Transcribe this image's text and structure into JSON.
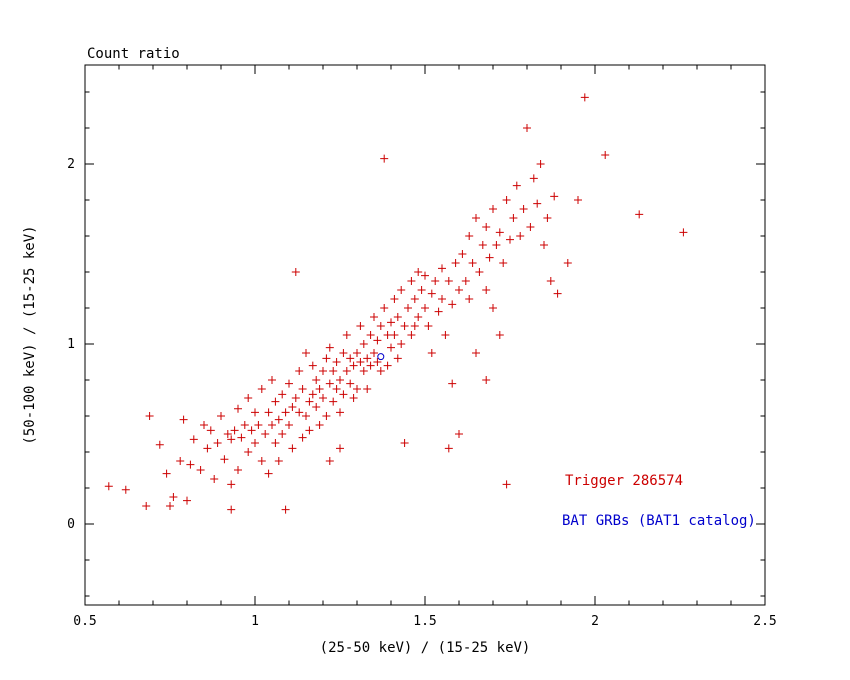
{
  "title": "Count ratio",
  "colors": {
    "trigger_red": "#cc0000",
    "catalog_blue": "#0000cc",
    "axis_black": "#000000",
    "background": "#ffffff"
  },
  "legend": [
    {
      "label": "Trigger 286574",
      "color": "#cc0000"
    },
    {
      "label": "BAT GRBs (BAT1 catalog)",
      "color": "#0000cc"
    }
  ],
  "chart_data": {
    "type": "scatter",
    "title": "Count ratio",
    "xlabel": "(25-50 keV) / (15-25 keV)",
    "ylabel": "(50-100 keV) / (15-25 keV)",
    "xlim": [
      0.5,
      2.5
    ],
    "ylim": [
      -0.45,
      2.55
    ],
    "x_major_ticks": [
      0.5,
      1.0,
      1.5,
      2.0,
      2.5
    ],
    "x_tick_labels": [
      "0.5",
      "1",
      "1.5",
      "2",
      "2.5"
    ],
    "x_minor_step": 0.1,
    "y_major_ticks": [
      0,
      1,
      2
    ],
    "y_tick_labels": [
      "0",
      "1",
      "2"
    ],
    "y_minor_step": 0.2,
    "grid": false,
    "legend_position": "lower-right-inside",
    "series": [
      {
        "name": "Trigger 286574",
        "marker": "plus",
        "color": "#cc0000",
        "points": [
          [
            0.57,
            0.21
          ],
          [
            0.62,
            0.19
          ],
          [
            0.68,
            0.1
          ],
          [
            0.69,
            0.6
          ],
          [
            0.72,
            0.44
          ],
          [
            0.74,
            0.28
          ],
          [
            0.75,
            0.1
          ],
          [
            0.76,
            0.15
          ],
          [
            0.78,
            0.35
          ],
          [
            0.79,
            0.58
          ],
          [
            0.8,
            0.13
          ],
          [
            0.81,
            0.33
          ],
          [
            0.82,
            0.47
          ],
          [
            0.84,
            0.3
          ],
          [
            0.85,
            0.55
          ],
          [
            0.86,
            0.42
          ],
          [
            0.87,
            0.52
          ],
          [
            0.88,
            0.25
          ],
          [
            0.89,
            0.45
          ],
          [
            0.9,
            0.6
          ],
          [
            0.91,
            0.36
          ],
          [
            0.92,
            0.5
          ],
          [
            0.93,
            0.22
          ],
          [
            0.93,
            0.08
          ],
          [
            0.93,
            0.47
          ],
          [
            0.94,
            0.52
          ],
          [
            0.95,
            0.3
          ],
          [
            0.95,
            0.64
          ],
          [
            0.96,
            0.48
          ],
          [
            0.97,
            0.55
          ],
          [
            0.98,
            0.4
          ],
          [
            0.98,
            0.7
          ],
          [
            0.99,
            0.52
          ],
          [
            1.0,
            0.45
          ],
          [
            1.0,
            0.62
          ],
          [
            1.01,
            0.55
          ],
          [
            1.02,
            0.35
          ],
          [
            1.02,
            0.75
          ],
          [
            1.03,
            0.5
          ],
          [
            1.04,
            0.62
          ],
          [
            1.04,
            0.28
          ],
          [
            1.05,
            0.55
          ],
          [
            1.05,
            0.8
          ],
          [
            1.06,
            0.45
          ],
          [
            1.06,
            0.68
          ],
          [
            1.07,
            0.58
          ],
          [
            1.07,
            0.35
          ],
          [
            1.08,
            0.72
          ],
          [
            1.08,
            0.5
          ],
          [
            1.09,
            0.62
          ],
          [
            1.09,
            0.08
          ],
          [
            1.1,
            0.55
          ],
          [
            1.1,
            0.78
          ],
          [
            1.11,
            0.65
          ],
          [
            1.11,
            0.42
          ],
          [
            1.12,
            0.7
          ],
          [
            1.12,
            1.4
          ],
          [
            1.13,
            0.85
          ],
          [
            1.13,
            0.62
          ],
          [
            1.14,
            0.48
          ],
          [
            1.14,
            0.75
          ],
          [
            1.15,
            0.6
          ],
          [
            1.15,
            0.95
          ],
          [
            1.16,
            0.68
          ],
          [
            1.16,
            0.52
          ],
          [
            1.17,
            0.72
          ],
          [
            1.17,
            0.88
          ],
          [
            1.18,
            0.65
          ],
          [
            1.18,
            0.8
          ],
          [
            1.19,
            0.75
          ],
          [
            1.19,
            0.55
          ],
          [
            1.2,
            0.85
          ],
          [
            1.2,
            0.7
          ],
          [
            1.21,
            0.92
          ],
          [
            1.21,
            0.6
          ],
          [
            1.22,
            0.78
          ],
          [
            1.22,
            0.35
          ],
          [
            1.22,
            0.98
          ],
          [
            1.23,
            0.85
          ],
          [
            1.23,
            0.68
          ],
          [
            1.24,
            0.75
          ],
          [
            1.24,
            0.9
          ],
          [
            1.25,
            0.8
          ],
          [
            1.25,
            0.42
          ],
          [
            1.25,
            0.62
          ],
          [
            1.26,
            0.95
          ],
          [
            1.26,
            0.72
          ],
          [
            1.27,
            0.85
          ],
          [
            1.27,
            1.05
          ],
          [
            1.28,
            0.78
          ],
          [
            1.28,
            0.92
          ],
          [
            1.29,
            0.7
          ],
          [
            1.29,
            0.88
          ],
          [
            1.3,
            0.95
          ],
          [
            1.3,
            0.75
          ],
          [
            1.31,
            0.9
          ],
          [
            1.31,
            1.1
          ],
          [
            1.32,
            0.85
          ],
          [
            1.32,
            1.0
          ],
          [
            1.33,
            0.92
          ],
          [
            1.33,
            0.75
          ],
          [
            1.34,
            1.05
          ],
          [
            1.34,
            0.88
          ],
          [
            1.35,
            0.95
          ],
          [
            1.35,
            1.15
          ],
          [
            1.36,
            0.9
          ],
          [
            1.36,
            1.02
          ],
          [
            1.37,
            1.1
          ],
          [
            1.37,
            0.85
          ],
          [
            1.38,
            1.2
          ],
          [
            1.38,
            2.03
          ],
          [
            1.39,
            1.05
          ],
          [
            1.39,
            0.88
          ],
          [
            1.4,
            1.12
          ],
          [
            1.4,
            0.98
          ],
          [
            1.41,
            1.25
          ],
          [
            1.41,
            1.05
          ],
          [
            1.42,
            0.92
          ],
          [
            1.42,
            1.15
          ],
          [
            1.43,
            1.3
          ],
          [
            1.43,
            1.0
          ],
          [
            1.44,
            1.1
          ],
          [
            1.44,
            0.45
          ],
          [
            1.45,
            1.2
          ],
          [
            1.46,
            1.35
          ],
          [
            1.46,
            1.05
          ],
          [
            1.47,
            1.25
          ],
          [
            1.47,
            1.1
          ],
          [
            1.48,
            1.4
          ],
          [
            1.48,
            1.15
          ],
          [
            1.49,
            1.3
          ],
          [
            1.5,
            1.2
          ],
          [
            1.5,
            1.38
          ],
          [
            1.51,
            1.1
          ],
          [
            1.52,
            1.28
          ],
          [
            1.52,
            0.95
          ],
          [
            1.53,
            1.35
          ],
          [
            1.54,
            1.18
          ],
          [
            1.55,
            1.42
          ],
          [
            1.55,
            1.25
          ],
          [
            1.56,
            1.05
          ],
          [
            1.57,
            1.35
          ],
          [
            1.57,
            0.42
          ],
          [
            1.58,
            1.22
          ],
          [
            1.58,
            0.78
          ],
          [
            1.59,
            1.45
          ],
          [
            1.6,
            1.3
          ],
          [
            1.6,
            0.5
          ],
          [
            1.61,
            1.5
          ],
          [
            1.62,
            1.35
          ],
          [
            1.63,
            1.6
          ],
          [
            1.63,
            1.25
          ],
          [
            1.64,
            1.45
          ],
          [
            1.65,
            1.7
          ],
          [
            1.65,
            0.95
          ],
          [
            1.66,
            1.4
          ],
          [
            1.67,
            1.55
          ],
          [
            1.68,
            1.3
          ],
          [
            1.68,
            1.65
          ],
          [
            1.68,
            0.8
          ],
          [
            1.69,
            1.48
          ],
          [
            1.7,
            1.75
          ],
          [
            1.7,
            1.2
          ],
          [
            1.71,
            1.55
          ],
          [
            1.72,
            1.62
          ],
          [
            1.72,
            1.05
          ],
          [
            1.73,
            1.45
          ],
          [
            1.74,
            1.8
          ],
          [
            1.74,
            0.22
          ],
          [
            1.75,
            1.58
          ],
          [
            1.76,
            1.7
          ],
          [
            1.77,
            1.88
          ],
          [
            1.78,
            1.6
          ],
          [
            1.79,
            1.75
          ],
          [
            1.8,
            2.2
          ],
          [
            1.81,
            1.65
          ],
          [
            1.82,
            1.92
          ],
          [
            1.83,
            1.78
          ],
          [
            1.84,
            2.0
          ],
          [
            1.85,
            1.55
          ],
          [
            1.86,
            1.7
          ],
          [
            1.87,
            1.35
          ],
          [
            1.88,
            1.82
          ],
          [
            1.89,
            1.28
          ],
          [
            1.92,
            1.45
          ],
          [
            1.95,
            1.8
          ],
          [
            1.97,
            2.37
          ],
          [
            2.03,
            2.05
          ],
          [
            2.13,
            1.72
          ],
          [
            2.26,
            1.62
          ]
        ]
      },
      {
        "name": "BAT GRBs (BAT1 catalog)",
        "marker": "circle",
        "color": "#0000cc",
        "points": [
          [
            1.37,
            0.93
          ]
        ]
      }
    ]
  }
}
